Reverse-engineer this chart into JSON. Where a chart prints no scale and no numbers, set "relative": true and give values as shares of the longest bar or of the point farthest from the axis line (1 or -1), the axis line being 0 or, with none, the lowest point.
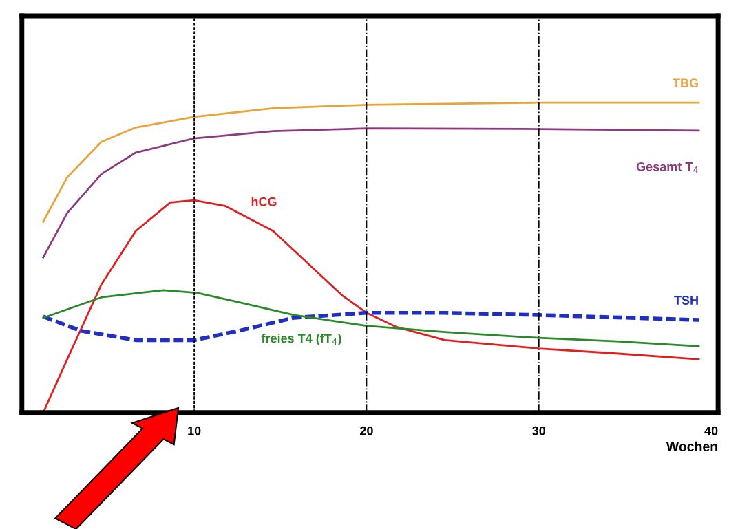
{
  "chart_data": {
    "type": "line",
    "relative": true,
    "xlabel": "Wochen",
    "xlim": [
      0,
      40.4
    ],
    "xticks": [
      10,
      20,
      30,
      40
    ],
    "tick_labels": "x",
    "grid": false,
    "legend": false,
    "series": [
      {
        "name": "TBG",
        "color": "#e8a33a",
        "x": [
          1.24,
          2.63,
          4.62,
          6.61,
          10,
          14.58,
          20,
          30,
          39.28
        ],
        "values": [
          0.616,
          0.759,
          0.874,
          0.92,
          0.954,
          0.982,
          0.993,
          1,
          1
        ]
      },
      {
        "name": "Gesamt T$_{4}$",
        "color": "#8e3a7e",
        "x": [
          1.24,
          2.63,
          4.62,
          6.61,
          10,
          14.58,
          20,
          30,
          39.28
        ],
        "values": [
          0.501,
          0.644,
          0.77,
          0.839,
          0.885,
          0.908,
          0.917,
          0.915,
          0.91
        ]
      },
      {
        "name": "hCG",
        "color": "#e02020",
        "x": [
          1.24,
          2.63,
          4.62,
          6.61,
          8.61,
          10,
          11.79,
          14.58,
          16.57,
          18.57,
          20,
          21.75,
          24.54,
          30,
          34.5,
          39.28
        ],
        "values": [
          0,
          0.172,
          0.414,
          0.586,
          0.678,
          0.685,
          0.667,
          0.586,
          0.483,
          0.379,
          0.322,
          0.276,
          0.234,
          0.207,
          0.191,
          0.172
        ]
      },
      {
        "name": "TSH",
        "color": "#1f2fc0",
        "line_style": "dashed",
        "x": [
          1.24,
          3.43,
          6.61,
          10,
          12.59,
          15.78,
          20,
          24.54,
          30,
          39.28
        ],
        "values": [
          0.31,
          0.264,
          0.234,
          0.234,
          0.264,
          0.306,
          0.322,
          0.322,
          0.315,
          0.299
        ]
      },
      {
        "name": "freies T4 (fT$_{4}$)",
        "color": "#2a8a2a",
        "x": [
          1.24,
          4.62,
          8.21,
          10.2,
          12.59,
          15.78,
          20,
          24.54,
          30,
          34.5,
          39.28
        ],
        "values": [
          0.306,
          0.372,
          0.395,
          0.386,
          0.356,
          0.315,
          0.28,
          0.26,
          0.241,
          0.23,
          0.214
        ]
      }
    ],
    "ref_lines": [
      {
        "axis": "x",
        "value": 10,
        "color": "#000000",
        "line_style": "dashed"
      },
      {
        "axis": "x",
        "value": 20,
        "color": "#000000",
        "line_style": "dashdot"
      },
      {
        "axis": "x",
        "value": 30,
        "color": "#000000",
        "line_style": "dashdot"
      }
    ]
  }
}
